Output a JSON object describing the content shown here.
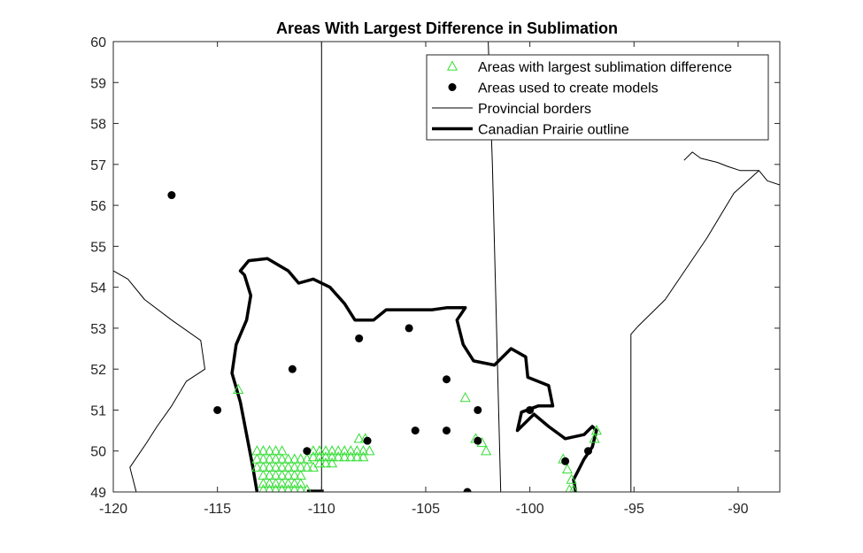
{
  "chart_data": {
    "type": "scatter",
    "title": "Areas With Largest Difference in Sublimation",
    "xlabel": "",
    "ylabel": "",
    "xlim": [
      -120,
      -88
    ],
    "ylim": [
      49,
      60
    ],
    "xticks": [
      "-120",
      "-115",
      "-110",
      "-105",
      "-100",
      "-95",
      "-90"
    ],
    "xtick_values": [
      -120,
      -115,
      -110,
      -105,
      -100,
      -95,
      -90
    ],
    "yticks": [
      "49",
      "50",
      "51",
      "52",
      "53",
      "54",
      "55",
      "56",
      "57",
      "58",
      "59",
      "60"
    ],
    "ytick_values": [
      49,
      50,
      51,
      52,
      53,
      54,
      55,
      56,
      57,
      58,
      59,
      60
    ],
    "grid": false,
    "legend_position": "top-right",
    "legend": [
      {
        "label": "Areas with largest sublimation difference",
        "marker": "triangle",
        "color": "#33dd33"
      },
      {
        "label": "Areas used to create models",
        "marker": "dot",
        "color": "#000000"
      },
      {
        "label": "Provincial borders",
        "marker": "thin-line",
        "color": "#000000"
      },
      {
        "label": "Canadian Prairie outline",
        "marker": "thick-line",
        "color": "#000000"
      }
    ],
    "series": [
      {
        "name": "Areas with largest sublimation difference",
        "marker": "triangle",
        "color": "#33dd33",
        "points": [
          [
            -114,
            51.5
          ],
          [
            -113.1,
            50
          ],
          [
            -112.8,
            50
          ],
          [
            -112.5,
            50
          ],
          [
            -112.2,
            50
          ],
          [
            -111.9,
            50
          ],
          [
            -113.1,
            49.8
          ],
          [
            -112.8,
            49.8
          ],
          [
            -112.5,
            49.8
          ],
          [
            -112.2,
            49.8
          ],
          [
            -111.9,
            49.8
          ],
          [
            -111.6,
            49.8
          ],
          [
            -111.3,
            49.8
          ],
          [
            -111.0,
            49.8
          ],
          [
            -110.7,
            49.8
          ],
          [
            -113.1,
            49.6
          ],
          [
            -112.8,
            49.6
          ],
          [
            -112.5,
            49.6
          ],
          [
            -112.2,
            49.6
          ],
          [
            -111.9,
            49.6
          ],
          [
            -111.6,
            49.6
          ],
          [
            -111.3,
            49.6
          ],
          [
            -111.0,
            49.6
          ],
          [
            -110.7,
            49.6
          ],
          [
            -110.4,
            49.6
          ],
          [
            -112.8,
            49.4
          ],
          [
            -112.5,
            49.4
          ],
          [
            -112.2,
            49.4
          ],
          [
            -111.9,
            49.4
          ],
          [
            -111.6,
            49.4
          ],
          [
            -111.3,
            49.4
          ],
          [
            -111.0,
            49.4
          ],
          [
            -112.8,
            49.2
          ],
          [
            -112.5,
            49.2
          ],
          [
            -112.2,
            49.2
          ],
          [
            -111.9,
            49.2
          ],
          [
            -111.6,
            49.2
          ],
          [
            -111.3,
            49.2
          ],
          [
            -111.0,
            49.2
          ],
          [
            -112.8,
            49.05
          ],
          [
            -112.5,
            49.05
          ],
          [
            -112.2,
            49.05
          ],
          [
            -111.9,
            49.05
          ],
          [
            -111.6,
            49.05
          ],
          [
            -111.3,
            49.05
          ],
          [
            -111.0,
            49.05
          ],
          [
            -110.7,
            49.05
          ],
          [
            -110.4,
            50.0
          ],
          [
            -110.1,
            50.0
          ],
          [
            -109.8,
            50.0
          ],
          [
            -109.5,
            50.0
          ],
          [
            -109.2,
            50.0
          ],
          [
            -108.9,
            50.0
          ],
          [
            -108.6,
            50.0
          ],
          [
            -108.3,
            50.0
          ],
          [
            -108.0,
            50.0
          ],
          [
            -107.7,
            50.0
          ],
          [
            -110.4,
            49.85
          ],
          [
            -110.1,
            49.85
          ],
          [
            -109.8,
            49.85
          ],
          [
            -109.5,
            49.85
          ],
          [
            -109.2,
            49.85
          ],
          [
            -108.9,
            49.85
          ],
          [
            -108.6,
            49.85
          ],
          [
            -108.3,
            49.85
          ],
          [
            -108.0,
            49.85
          ],
          [
            -110.1,
            49.7
          ],
          [
            -109.8,
            49.7
          ],
          [
            -109.5,
            49.7
          ],
          [
            -108.2,
            50.3
          ],
          [
            -107.9,
            50.3
          ],
          [
            -103.1,
            51.3
          ],
          [
            -102.6,
            50.3
          ],
          [
            -102.3,
            50.2
          ],
          [
            -102.1,
            50.0
          ],
          [
            -98.4,
            49.8
          ],
          [
            -98.2,
            49.55
          ],
          [
            -98.0,
            49.3
          ],
          [
            -98.1,
            49.05
          ],
          [
            -97.9,
            49.05
          ],
          [
            -96.8,
            50.5
          ],
          [
            -96.9,
            50.3
          ]
        ]
      },
      {
        "name": "Areas used to create models",
        "marker": "dot",
        "color": "#000000",
        "points": [
          [
            -117.2,
            56.25
          ],
          [
            -115,
            51
          ],
          [
            -111.4,
            52
          ],
          [
            -110.7,
            50
          ],
          [
            -108.2,
            52.75
          ],
          [
            -107.8,
            50.25
          ],
          [
            -105.8,
            53
          ],
          [
            -105.5,
            50.5
          ],
          [
            -104,
            51.75
          ],
          [
            -104,
            50.5
          ],
          [
            -103,
            49
          ],
          [
            -102.5,
            51
          ],
          [
            -102.5,
            50.25
          ],
          [
            -100,
            51
          ],
          [
            -98.3,
            49.75
          ],
          [
            -97.2,
            50
          ]
        ]
      },
      {
        "name": "Provincial borders",
        "style": "thin-line",
        "paths": [
          [
            [
              -110,
              60
            ],
            [
              -110,
              49
            ]
          ],
          [
            [
              -102,
              60
            ],
            [
              -101.8,
              57
            ],
            [
              -101.6,
              53
            ],
            [
              -101.4,
              49
            ]
          ],
          [
            [
              -95.15,
              49
            ],
            [
              -95.15,
              52.85
            ],
            [
              -94.8,
              53.05
            ],
            [
              -93.5,
              53.7
            ],
            [
              -91.5,
              55.2
            ],
            [
              -90.2,
              56.3
            ],
            [
              -89,
              56.85
            ],
            [
              -88.6,
              56.6
            ],
            [
              -88,
              56.5
            ]
          ],
          [
            [
              -118.9,
              49
            ],
            [
              -119.2,
              49.6
            ],
            [
              -118.4,
              50.2
            ],
            [
              -117.9,
              50.6
            ],
            [
              -117.2,
              51.1
            ],
            [
              -116.5,
              51.7
            ],
            [
              -115.6,
              52
            ],
            [
              -115.8,
              52.7
            ],
            [
              -117.2,
              53.2
            ],
            [
              -118.5,
              53.7
            ],
            [
              -119.3,
              54.2
            ],
            [
              -120,
              54.4
            ]
          ],
          [
            [
              -92.6,
              57.1
            ],
            [
              -92.2,
              57.3
            ],
            [
              -91.8,
              57.15
            ],
            [
              -91,
              57.05
            ],
            [
              -90.5,
              56.95
            ],
            [
              -89.9,
              56.85
            ],
            [
              -89.0,
              56.85
            ]
          ]
        ]
      },
      {
        "name": "Canadian Prairie outline",
        "style": "thick-line",
        "paths": [
          [
            [
              -113.1,
              49
            ],
            [
              -113.3,
              49.6
            ],
            [
              -113.6,
              50.4
            ],
            [
              -113.9,
              51.2
            ],
            [
              -114.3,
              51.9
            ],
            [
              -114.1,
              52.6
            ],
            [
              -113.6,
              53.2
            ],
            [
              -113.4,
              53.8
            ],
            [
              -113.7,
              54.3
            ],
            [
              -113.9,
              54.4
            ],
            [
              -113.5,
              54.65
            ],
            [
              -112.6,
              54.7
            ],
            [
              -111.6,
              54.4
            ],
            [
              -111.1,
              54.1
            ],
            [
              -110.4,
              54.2
            ],
            [
              -109.6,
              54
            ],
            [
              -108.9,
              53.6
            ],
            [
              -108.4,
              53.2
            ],
            [
              -107.5,
              53.2
            ],
            [
              -106.9,
              53.45
            ],
            [
              -105.6,
              53.45
            ],
            [
              -104.7,
              53.45
            ],
            [
              -104,
              53.5
            ],
            [
              -103.1,
              53.5
            ],
            [
              -103.5,
              53.2
            ],
            [
              -103.2,
              52.6
            ],
            [
              -102.7,
              52.2
            ],
            [
              -101.7,
              52.1
            ],
            [
              -100.9,
              52.5
            ],
            [
              -100.2,
              52.3
            ],
            [
              -100.1,
              51.8
            ],
            [
              -99.1,
              51.6
            ],
            [
              -98.9,
              51.1
            ],
            [
              -99.6,
              51.1
            ],
            [
              -100.4,
              50.95
            ],
            [
              -100.6,
              50.5
            ],
            [
              -99.8,
              50.9
            ],
            [
              -99.1,
              50.6
            ],
            [
              -98.3,
              50.3
            ],
            [
              -97.4,
              50.4
            ],
            [
              -97,
              50.6
            ],
            [
              -96.8,
              50.5
            ],
            [
              -97,
              50.1
            ],
            [
              -97.4,
              49.8
            ],
            [
              -97.7,
              49.5
            ],
            [
              -97.9,
              49.3
            ],
            [
              -97.8,
              49
            ]
          ],
          [
            [
              -110.7,
              49.02
            ],
            [
              -110.3,
              49.02
            ],
            [
              -109.9,
              49.02
            ]
          ]
        ]
      }
    ]
  }
}
